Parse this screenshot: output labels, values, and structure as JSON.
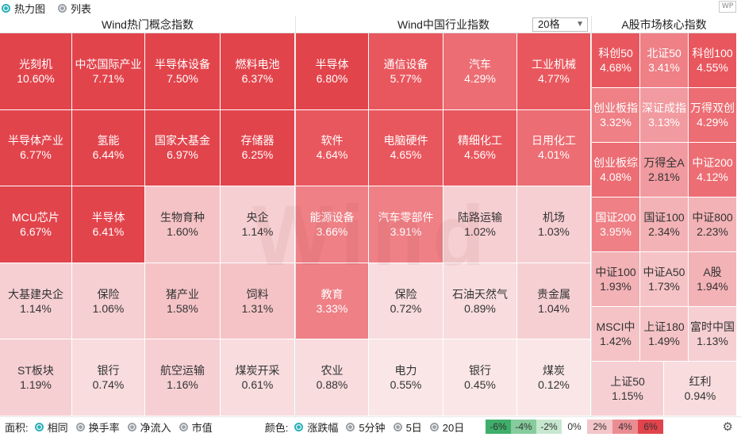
{
  "view_toggle": {
    "heatmap": "热力图",
    "list": "列表"
  },
  "panels": {
    "concept": {
      "title": "Wind热门概念指数",
      "cells": [
        {
          "name": "光刻机",
          "pct": "10.60%"
        },
        {
          "name": "中芯国际产业",
          "pct": "7.71%"
        },
        {
          "name": "半导体设备",
          "pct": "7.50%"
        },
        {
          "name": "燃料电池",
          "pct": "6.37%"
        },
        {
          "name": "半导体产业",
          "pct": "6.77%"
        },
        {
          "name": "氢能",
          "pct": "6.44%"
        },
        {
          "name": "国家大基金",
          "pct": "6.97%"
        },
        {
          "name": "存储器",
          "pct": "6.25%"
        },
        {
          "name": "MCU芯片",
          "pct": "6.67%"
        },
        {
          "name": "半导体",
          "pct": "6.41%"
        },
        {
          "name": "生物育种",
          "pct": "1.60%"
        },
        {
          "name": "央企",
          "pct": "1.14%"
        },
        {
          "name": "大基建央企",
          "pct": "1.14%"
        },
        {
          "name": "保险",
          "pct": "1.06%"
        },
        {
          "name": "猪产业",
          "pct": "1.58%"
        },
        {
          "name": "饲料",
          "pct": "1.31%"
        },
        {
          "name": "ST板块",
          "pct": "1.19%"
        },
        {
          "name": "银行",
          "pct": "0.74%"
        },
        {
          "name": "航空运输",
          "pct": "1.16%"
        },
        {
          "name": "煤炭开采",
          "pct": "0.61%"
        }
      ]
    },
    "industry": {
      "title": "Wind中国行业指数",
      "select_value": "20格",
      "cells": [
        {
          "name": "半导体",
          "pct": "6.80%"
        },
        {
          "name": "通信设备",
          "pct": "5.77%"
        },
        {
          "name": "汽车",
          "pct": "4.29%"
        },
        {
          "name": "工业机械",
          "pct": "4.77%"
        },
        {
          "name": "软件",
          "pct": "4.64%"
        },
        {
          "name": "电脑硬件",
          "pct": "4.65%"
        },
        {
          "name": "精细化工",
          "pct": "4.56%"
        },
        {
          "name": "日用化工",
          "pct": "4.01%"
        },
        {
          "name": "能源设备",
          "pct": "3.66%"
        },
        {
          "name": "汽车零部件",
          "pct": "3.91%"
        },
        {
          "name": "陆路运输",
          "pct": "1.02%"
        },
        {
          "name": "机场",
          "pct": "1.03%"
        },
        {
          "name": "教育",
          "pct": "3.33%"
        },
        {
          "name": "保险",
          "pct": "0.72%"
        },
        {
          "name": "石油天然气",
          "pct": "0.89%"
        },
        {
          "name": "贵金属",
          "pct": "1.04%"
        },
        {
          "name": "农业",
          "pct": "0.88%"
        },
        {
          "name": "电力",
          "pct": "0.55%"
        },
        {
          "name": "银行",
          "pct": "0.45%"
        },
        {
          "name": "煤炭",
          "pct": "0.12%"
        }
      ]
    },
    "core": {
      "title": "A股市场核心指数",
      "cells": [
        {
          "name": "科创50",
          "pct": "4.68%"
        },
        {
          "name": "北证50",
          "pct": "3.41%"
        },
        {
          "name": "科创100",
          "pct": "4.55%"
        },
        {
          "name": "创业板指",
          "pct": "3.32%"
        },
        {
          "name": "深证成指",
          "pct": "3.13%"
        },
        {
          "name": "万得双创",
          "pct": "4.29%"
        },
        {
          "name": "创业板综",
          "pct": "4.08%"
        },
        {
          "name": "万得全A",
          "pct": "2.81%"
        },
        {
          "name": "中证200",
          "pct": "4.12%"
        },
        {
          "name": "国证200",
          "pct": "3.95%"
        },
        {
          "name": "国证100",
          "pct": "2.34%"
        },
        {
          "name": "中证800",
          "pct": "2.23%"
        },
        {
          "name": "中证100",
          "pct": "1.93%"
        },
        {
          "name": "中证A50",
          "pct": "1.73%"
        },
        {
          "name": "A股",
          "pct": "1.94%"
        },
        {
          "name": "MSCI中",
          "pct": "1.42%"
        },
        {
          "name": "上证180",
          "pct": "1.49%"
        },
        {
          "name": "富时中国",
          "pct": "1.13%"
        },
        {
          "name": "上证50",
          "pct": "1.15%"
        },
        {
          "name": "红利",
          "pct": "0.94%"
        }
      ]
    }
  },
  "watermark": "Wind",
  "bottom": {
    "area_label": "面积:",
    "area_options": [
      "相同",
      "换手率",
      "净流入",
      "市值"
    ],
    "color_label": "颜色:",
    "color_options": [
      "涨跌幅",
      "5分钟",
      "5日",
      "20日"
    ],
    "legend": [
      {
        "label": "-6%",
        "color": "#3fae6a"
      },
      {
        "label": "-4%",
        "color": "#86cc9d"
      },
      {
        "label": "-2%",
        "color": "#c7e7cf"
      },
      {
        "label": "0%",
        "color": "#ffffff"
      },
      {
        "label": "2%",
        "color": "#f3c6c9"
      },
      {
        "label": "4%",
        "color": "#ea8d93"
      },
      {
        "label": "6%",
        "color": "#e2444c"
      }
    ]
  },
  "colors": {
    "up_strong": "#e2444c",
    "up_mid": "#ea6d74",
    "up_light": "#f1a4a9",
    "up_pale": "#f6cfd2",
    "accent": "#2bb1b8"
  }
}
